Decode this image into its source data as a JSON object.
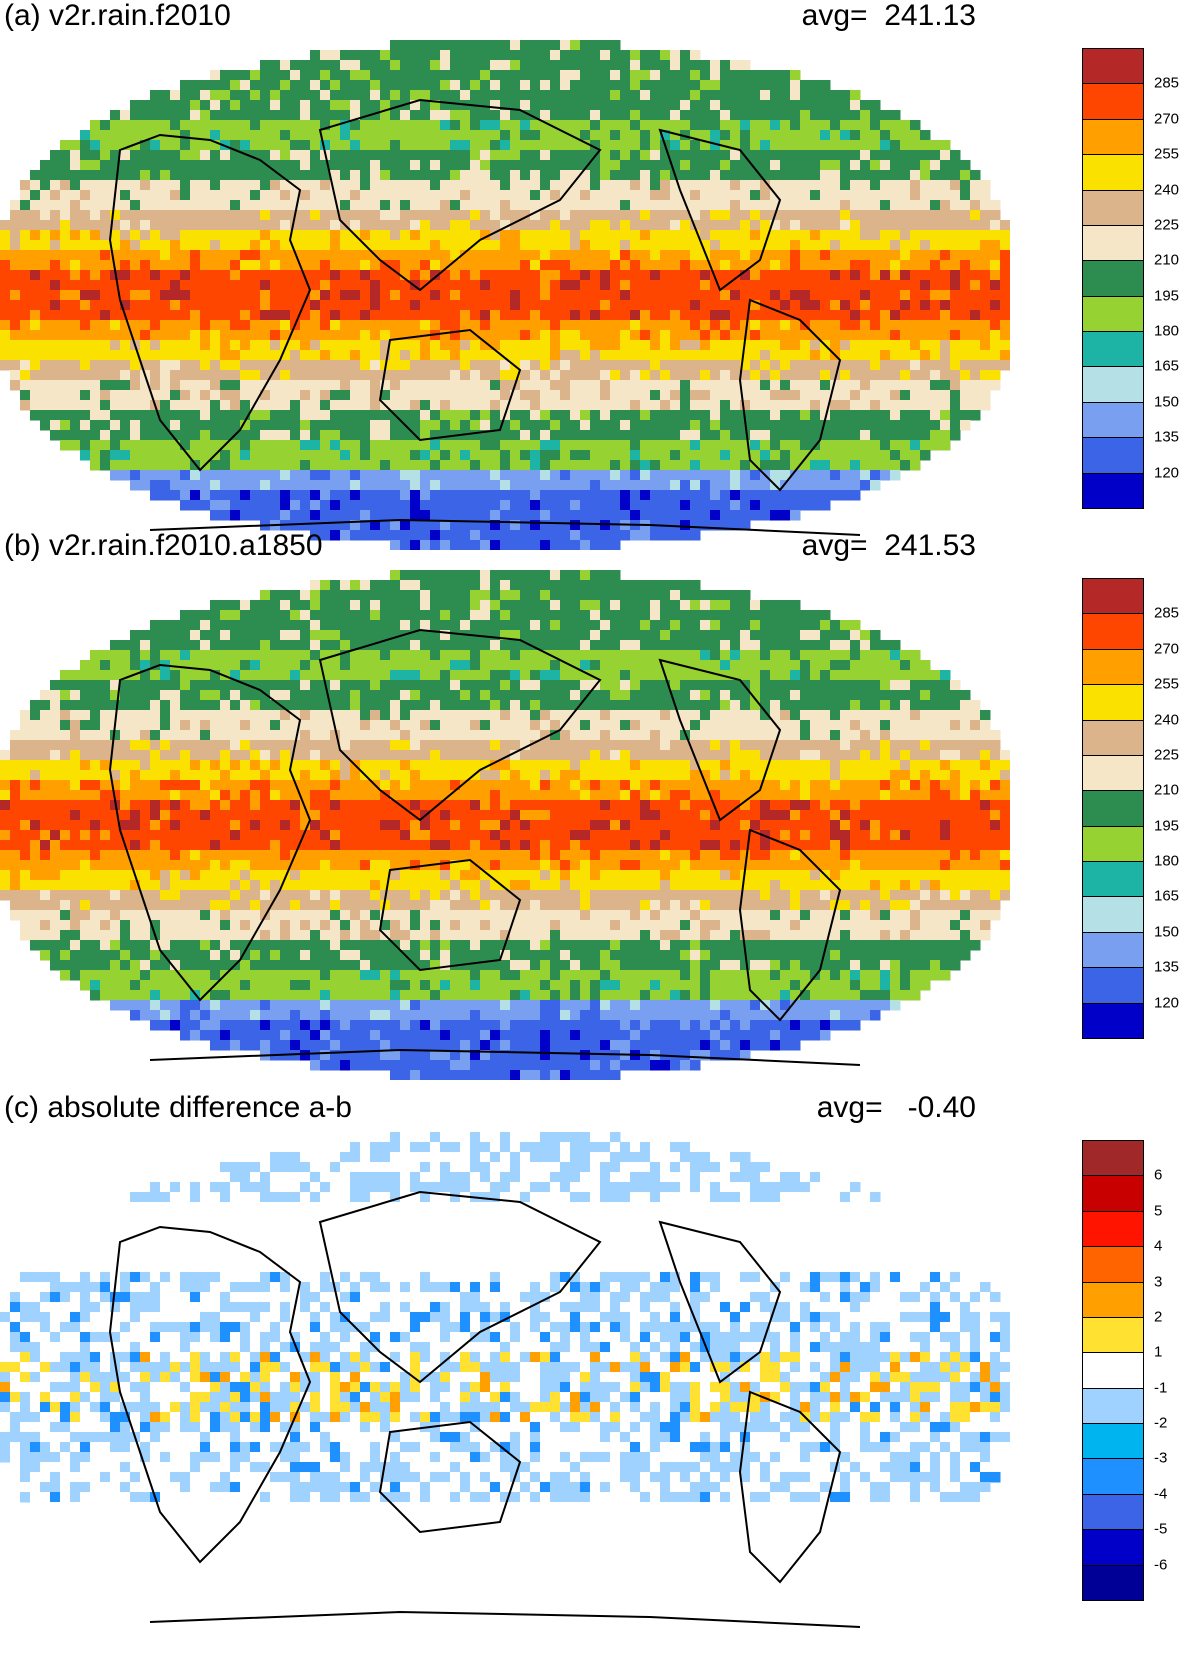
{
  "panels": [
    {
      "title": "(a) v2r.rain.f2010",
      "avg": "avg=  241.13",
      "type": "absolute",
      "colorbar": {
        "colors": [
          "#0000c8",
          "#3c64e6",
          "#789ff0",
          "#b4e0e6",
          "#1eb4a5",
          "#96d232",
          "#2d8c50",
          "#f5e6c8",
          "#dcb48c",
          "#fae100",
          "#ffa000",
          "#ff4600",
          "#b42828"
        ],
        "labels": [
          "120",
          "135",
          "150",
          "165",
          "180",
          "195",
          "210",
          "225",
          "240",
          "255",
          "270",
          "285"
        ]
      }
    },
    {
      "title": "(b) v2r.rain.f2010.a1850",
      "avg": "avg=  241.53",
      "type": "absolute",
      "colorbar": {
        "colors": [
          "#0000c8",
          "#3c64e6",
          "#789ff0",
          "#b4e0e6",
          "#1eb4a5",
          "#96d232",
          "#2d8c50",
          "#f5e6c8",
          "#dcb48c",
          "#fae100",
          "#ffa000",
          "#ff4600",
          "#b42828"
        ],
        "labels": [
          "120",
          "135",
          "150",
          "165",
          "180",
          "195",
          "210",
          "225",
          "240",
          "255",
          "270",
          "285"
        ]
      }
    },
    {
      "title": "(c) absolute difference a-b",
      "avg": "avg=   -0.40",
      "type": "difference",
      "colorbar": {
        "colors": [
          "#000096",
          "#0000c8",
          "#3c64e6",
          "#1e90ff",
          "#00b4f0",
          "#a0d2ff",
          "#ffffff",
          "#ffe132",
          "#ffa000",
          "#ff6400",
          "#ff1400",
          "#c80000",
          "#a02828"
        ],
        "labels": [
          "-6",
          "-5",
          "-4",
          "-3",
          "-2",
          "-1",
          "1",
          "2",
          "3",
          "4",
          "5",
          "6"
        ]
      }
    }
  ]
}
